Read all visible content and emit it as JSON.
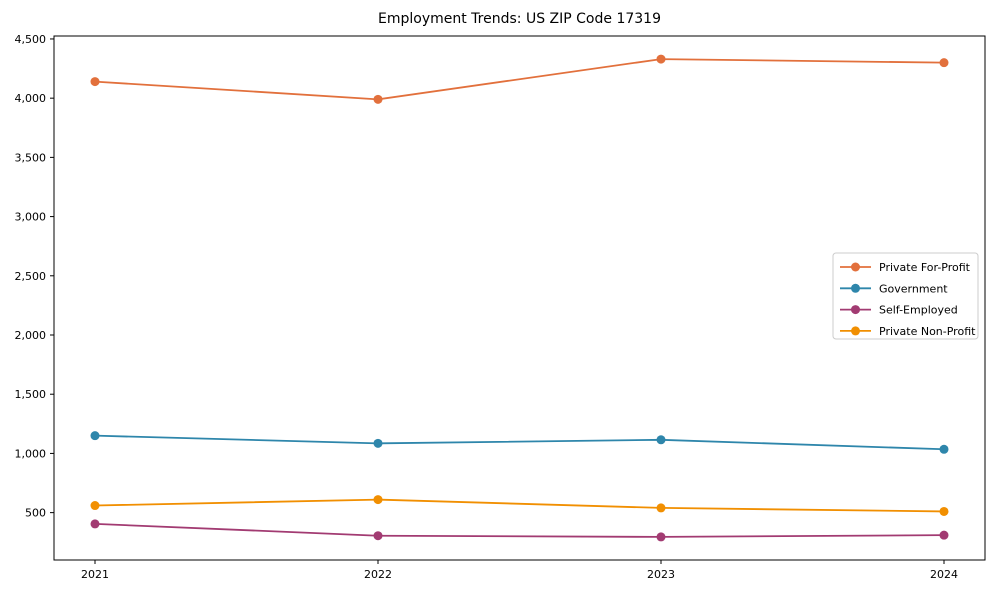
{
  "chart_data": {
    "type": "line",
    "title": "Employment Trends: US ZIP Code 17319",
    "xlabel": "",
    "ylabel": "",
    "x": [
      2021,
      2022,
      2023,
      2024
    ],
    "categories": [
      "2021",
      "2022",
      "2023",
      "2024"
    ],
    "series": [
      {
        "name": "Private For-Profit",
        "color": "#E2703C",
        "values": [
          4140,
          3990,
          4330,
          4300
        ]
      },
      {
        "name": "Government",
        "color": "#2E86AB",
        "values": [
          1150,
          1085,
          1115,
          1035
        ]
      },
      {
        "name": "Self-Employed",
        "color": "#A23B72",
        "values": [
          405,
          305,
          295,
          310
        ]
      },
      {
        "name": "Private Non-Profit",
        "color": "#F18F01",
        "values": [
          560,
          610,
          540,
          510
        ]
      }
    ],
    "ylim": [
      100,
      4525
    ],
    "yticks": [
      500,
      1000,
      1500,
      2000,
      2500,
      3000,
      3500,
      4000,
      4500
    ],
    "grid": false,
    "legend_position": "center-right",
    "marker": "circle",
    "axis_color": "#000000",
    "legend_border_color": "#cccccc",
    "background_color": "#ffffff"
  }
}
